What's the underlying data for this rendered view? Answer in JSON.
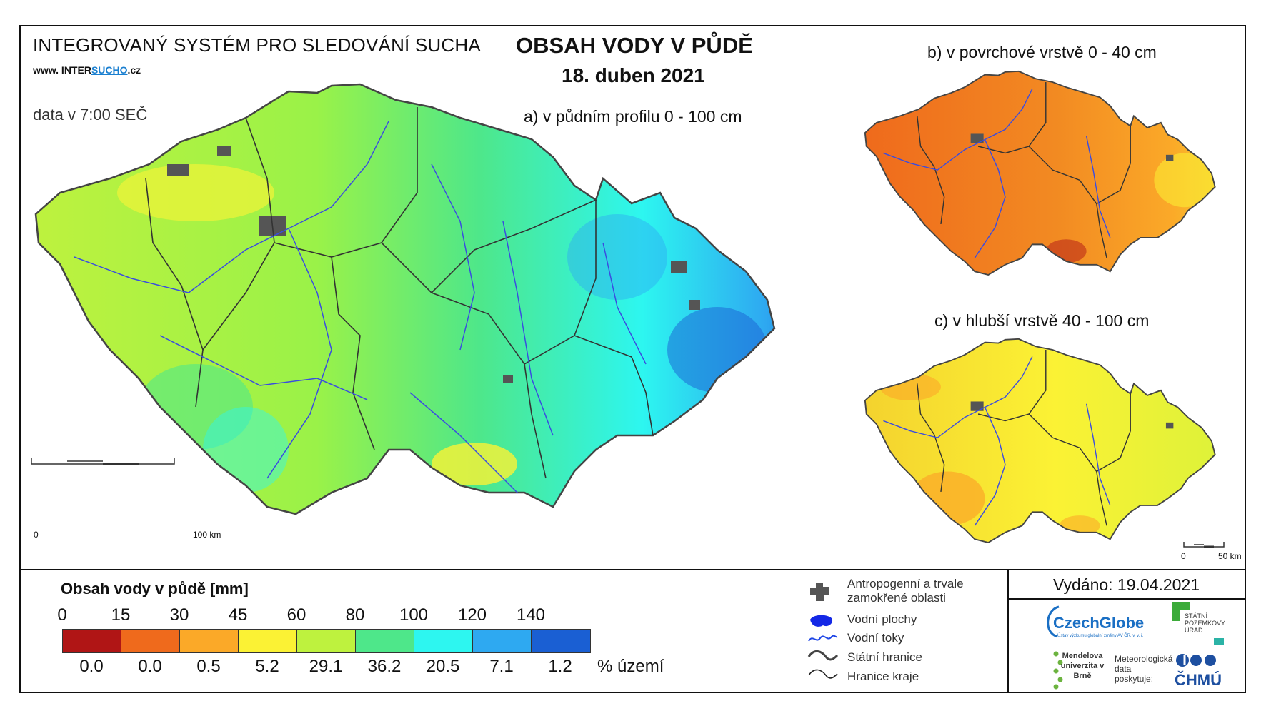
{
  "header": {
    "system_title": "INTEGROVANÝ SYSTÉM PRO SLEDOVÁNÍ SUCHA",
    "url_prefix": "www. INTER",
    "url_highlight": "SUCHO",
    "url_suffix": ".cz",
    "data_time": "data v 7:00 SEČ",
    "title": "OBSAH VODY V PŮDĚ",
    "date": "18. duben 2021"
  },
  "maps": {
    "a_label": "a) v půdním profilu 0 - 100 cm",
    "b_label": "b) v povrchové vrstvě 0 - 40 cm",
    "c_label": "c) v hlubší vrstvě 40 - 100 cm",
    "a_scale_start": "0",
    "a_scale_end": "100 km",
    "c_scale_start": "0",
    "c_scale_end": "50 km"
  },
  "legend": {
    "title": "Obsah vody v půdě  [mm]",
    "thresholds": [
      "0",
      "15",
      "30",
      "45",
      "60",
      "80",
      "100",
      "120",
      "140"
    ],
    "colors": [
      "#b01515",
      "#ef6a1c",
      "#fba928",
      "#fbf234",
      "#bef23e",
      "#4ee78a",
      "#2df6f0",
      "#2ea9f1",
      "#1a5fd3"
    ],
    "percentages": [
      "0.0",
      "0.0",
      "0.5",
      "5.2",
      "29.1",
      "36.2",
      "20.5",
      "7.1",
      "1.2"
    ],
    "percent_unit": "% území"
  },
  "key": {
    "urban": "Antropogenní a trvale zamokřené oblasti",
    "water_bodies": "Vodní plochy",
    "streams": "Vodní toky",
    "state_border": "Státní hranice",
    "region_border": "Hranice kraje"
  },
  "footer": {
    "issued": "Vydáno: 19.04.2021",
    "czechglobe": "CzechGlobe",
    "czechglobe_sub": "Ústav výzkumu globální změny AV ČR, v. v. i.",
    "spu": "STÁTNÍ POZEMKOVÝ ÚŘAD",
    "mendel": "Mendelova univerzita v Brně",
    "met_data": "Meteorologická data poskytuje:",
    "chmu": "ČHMÚ"
  }
}
